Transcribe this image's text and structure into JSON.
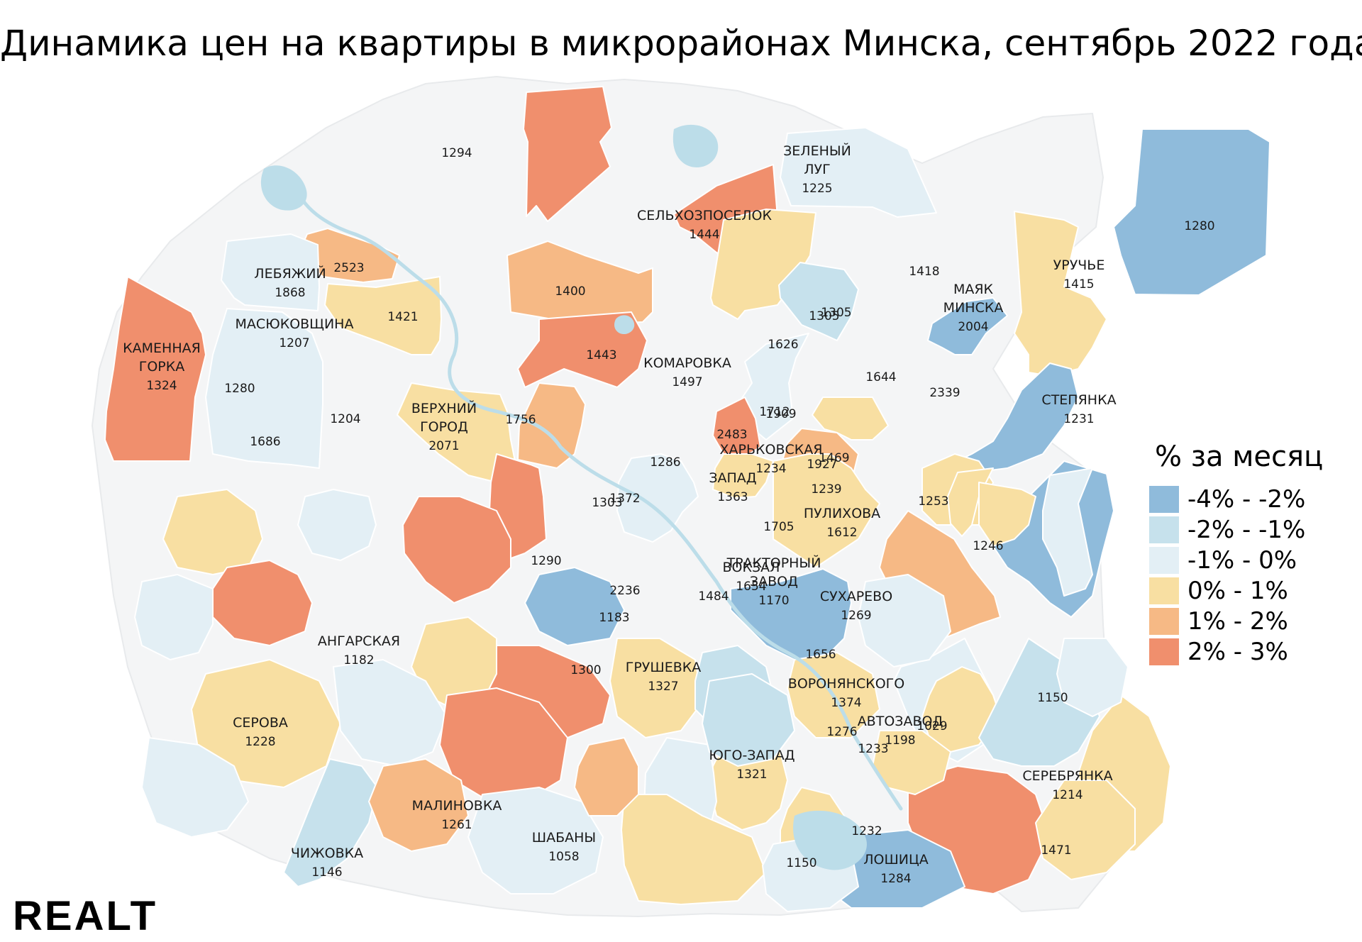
{
  "title": "Динамика цен на квартиры в микрорайонах Минска, сентябрь 2022 года",
  "colors": {
    "base": "#f4f5f6",
    "water": "#bcdde9",
    "-4% - -2%": "#8fbbdb",
    "-2% - -1%": "#c6e1ec",
    "-1% - 0%": "#e3eff5",
    "0% - 1%": "#f8dfa2",
    "1% - 2%": "#f6b985",
    "2% - 3%": "#f08f6d"
  },
  "legend": {
    "title": "% за месяц",
    "items": [
      {
        "label": "-4% - -2%",
        "color": "#8fbbdb"
      },
      {
        "label": "-2% - -1%",
        "color": "#c6e1ec"
      },
      {
        "label": "-1% - 0%",
        "color": "#e3eff5"
      },
      {
        "label": "0% - 1%",
        "color": "#f8dfa2"
      },
      {
        "label": "1% - 2%",
        "color": "#f6b985"
      },
      {
        "label": "2% - 3%",
        "color": "#f08f6d"
      }
    ]
  },
  "districts": [
    {
      "name": "",
      "value": "1294",
      "class": "2% - 3%"
    },
    {
      "name": "ЗЕЛЕНЫЙ ЛУГ",
      "value": "1225",
      "class": "-1% - 0%"
    },
    {
      "name": "",
      "value": "1280",
      "class": "-4% - -2%"
    },
    {
      "name": "СЕЛЬХОЗПОСЕЛОК",
      "value": "1444",
      "class": "2% - 3%"
    },
    {
      "name": "",
      "value": "2523",
      "class": "1% - 2%"
    },
    {
      "name": "ЛЕБЯЖИЙ",
      "value": "1868",
      "class": "-1% - 0%"
    },
    {
      "name": "",
      "value": "1400",
      "class": "1% - 2%"
    },
    {
      "name": "",
      "value": "1418",
      "class": "0% - 1%"
    },
    {
      "name": "",
      "value": "1305",
      "class": "-2% - -1%"
    },
    {
      "name": "УРУЧЬЕ",
      "value": "1415",
      "class": "0% - 1%"
    },
    {
      "name": "",
      "value": "1421",
      "class": "0% - 1%"
    },
    {
      "name": "МАСЮКОВЩИНА",
      "value": "1207",
      "class": "-1% - 0%"
    },
    {
      "name": "",
      "value": "1305",
      "class": "-4% - -2%"
    },
    {
      "name": "МАЯК МИНСКА",
      "value": "2004",
      "class": "2% - 3%"
    },
    {
      "name": "КАМЕННАЯ ГОРКА",
      "value": "1324",
      "class": "2% - 3%"
    },
    {
      "name": "",
      "value": "1443",
      "class": "-1% - 0%"
    },
    {
      "name": "",
      "value": "1626",
      "class": "2% - 3%"
    },
    {
      "name": "КОМАРОВКА",
      "value": "1497",
      "class": "0% - 1%"
    },
    {
      "name": "",
      "value": "1644",
      "class": "-4% - -2%"
    },
    {
      "name": "",
      "value": "2339",
      "class": "1% - 2%"
    },
    {
      "name": "",
      "value": "1280",
      "class": "0% - 1%"
    },
    {
      "name": "СТЕПЯНКА",
      "value": "1231",
      "class": "0% - 1%"
    },
    {
      "name": "",
      "value": "1204",
      "class": "1% - 2%"
    },
    {
      "name": "",
      "value": "1756",
      "class": "0% - 1%"
    },
    {
      "name": "",
      "value": "1909",
      "class": "0% - 1%"
    },
    {
      "name": "",
      "value": "2483",
      "class": "2% - 3%"
    },
    {
      "name": "",
      "value": "1686",
      "class": "-1% - 0%"
    },
    {
      "name": "",
      "value": "1303",
      "class": "0% - 1%"
    },
    {
      "name": "",
      "value": "1469",
      "class": "-4% - -2%"
    },
    {
      "name": "",
      "value": "1712",
      "class": "1% - 2%"
    },
    {
      "name": "ВЕРХНИЙ ГОРОД",
      "value": "2071",
      "class": "-4% - -2%"
    },
    {
      "name": "",
      "value": "1372",
      "class": "-1% - 0%"
    },
    {
      "name": "ХАРЬКОВСКАЯ",
      "value": "1234",
      "class": "-1% - 0%"
    },
    {
      "name": "",
      "value": "1927",
      "class": "0% - 1%"
    },
    {
      "name": "",
      "value": "1239",
      "class": "0% - 1%"
    },
    {
      "name": "",
      "value": "1286",
      "class": "-2% - -1%"
    },
    {
      "name": "ЗАПАД",
      "value": "1363",
      "class": "0% - 1%"
    },
    {
      "name": "",
      "value": "1253",
      "class": "-1% - 0%"
    },
    {
      "name": "",
      "value": "1705",
      "class": "0% - 1%"
    },
    {
      "name": "ПУЛИХОВА",
      "value": "1612",
      "class": "2% - 3%"
    },
    {
      "name": "",
      "value": "2236",
      "class": "0% - 1%"
    },
    {
      "name": "ВОКЗАЛ",
      "value": "1654",
      "class": "-2% - -1%"
    },
    {
      "name": "",
      "value": "1290",
      "class": "0% - 1%"
    },
    {
      "name": "",
      "value": "1656",
      "class": "-4% - -2%"
    },
    {
      "name": "",
      "value": "1183",
      "class": "2% - 3%"
    },
    {
      "name": "ТРАКТОРНЫЙ ЗАВОД",
      "value": "1170",
      "class": "0% - 1%"
    },
    {
      "name": "",
      "value": "1246",
      "class": "-1% - 0%"
    },
    {
      "name": "",
      "value": "1484",
      "class": "2% - 3%"
    },
    {
      "name": "СУХАРЕВО",
      "value": "1269",
      "class": "-1% - 0%"
    },
    {
      "name": "ГРУШЕВКА",
      "value": "1327",
      "class": "-4% - -2%"
    },
    {
      "name": "ВОРОНЯНСКОГО",
      "value": "1374",
      "class": "2% - 3%"
    },
    {
      "name": "АНГАРСКАЯ",
      "value": "1182",
      "class": "0% - 1%"
    },
    {
      "name": "",
      "value": "1300",
      "class": "0% - 1%"
    },
    {
      "name": "",
      "value": "1150",
      "class": "-2% - -1%"
    },
    {
      "name": "АВТОЗАВОД",
      "value": "1198",
      "class": "-1% - 0%"
    },
    {
      "name": "",
      "value": "1276",
      "class": "0% - 1%"
    },
    {
      "name": "",
      "value": "1233",
      "class": "0% - 1%"
    },
    {
      "name": "ЮГО-ЗАПАД",
      "value": "1321",
      "class": "-1% - 0%"
    },
    {
      "name": "",
      "value": "1029",
      "class": "0% - 1%"
    },
    {
      "name": "СЕРЕБРЯНКА",
      "value": "1214",
      "class": "-1% - 0%"
    },
    {
      "name": "",
      "value": "1232",
      "class": "2% - 3%"
    },
    {
      "name": "МАЛИНОВКА",
      "value": "1261",
      "class": "-2% - -1%"
    },
    {
      "name": "",
      "value": "1150",
      "class": "-1% - 0%"
    },
    {
      "name": "СЕРОВА",
      "value": "1228",
      "class": "1% - 2%"
    },
    {
      "name": "ШАБАНЫ",
      "value": "1058",
      "class": "-1% - 0%"
    },
    {
      "name": "",
      "value": "1471",
      "class": "0% - 1%"
    },
    {
      "name": "ЛОШИЦА",
      "value": "1284",
      "class": "1% - 2%"
    },
    {
      "name": "ЧИЖОВКА",
      "value": "1146",
      "class": "-1% - 0%"
    }
  ],
  "logo": "REALT"
}
